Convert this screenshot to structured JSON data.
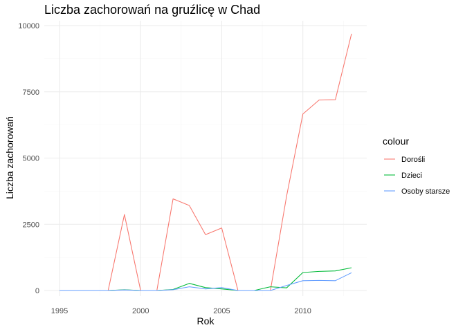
{
  "chart_data": {
    "type": "line",
    "title": "Liczba zachorowań na gruźlicę w Chad",
    "xlabel": "Rok",
    "ylabel": "Liczba zachorowań",
    "xlim": [
      1995,
      2013
    ],
    "ylim": [
      0,
      10000
    ],
    "x_ticks": [
      1995,
      2000,
      2005,
      2010
    ],
    "y_ticks": [
      0,
      2500,
      5000,
      7500,
      10000
    ],
    "x_tick_labels": [
      "1995",
      "2000",
      "2005",
      "2010"
    ],
    "y_tick_labels": [
      "0",
      "2500",
      "5000",
      "7500",
      "10000"
    ],
    "grid": true,
    "legend": {
      "title": "colour",
      "position": "right"
    },
    "x": [
      1995,
      1996,
      1997,
      1998,
      1999,
      2000,
      2001,
      2002,
      2003,
      2004,
      2005,
      2006,
      2007,
      2008,
      2009,
      2010,
      2011,
      2012,
      2013
    ],
    "series": [
      {
        "name": "Dorośli",
        "color": "#F8766D",
        "values": [
          0,
          0,
          0,
          0,
          2870,
          0,
          0,
          3460,
          3210,
          2110,
          2360,
          0,
          0,
          0,
          3570,
          6660,
          7190,
          7200,
          9690
        ]
      },
      {
        "name": "Dzieci",
        "color": "#00BA38",
        "values": [
          0,
          0,
          0,
          0,
          30,
          0,
          0,
          40,
          270,
          110,
          60,
          0,
          0,
          140,
          100,
          680,
          720,
          740,
          860
        ]
      },
      {
        "name": "Osoby starsze",
        "color": "#619CFF",
        "values": [
          0,
          0,
          0,
          0,
          20,
          0,
          0,
          30,
          140,
          60,
          110,
          0,
          0,
          0,
          190,
          370,
          380,
          370,
          670
        ]
      }
    ]
  }
}
